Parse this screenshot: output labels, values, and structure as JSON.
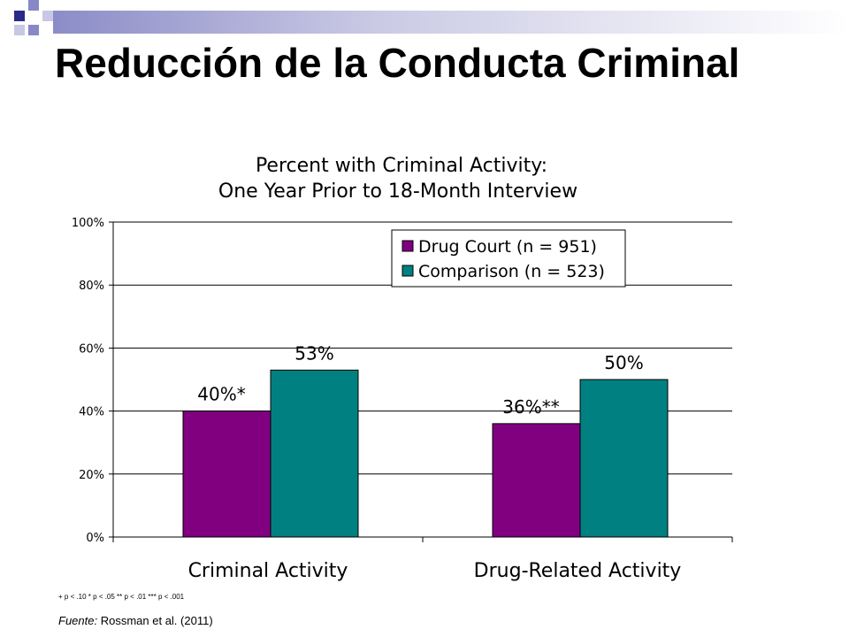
{
  "slide": {
    "title": "Reducción de la Conducta Criminal",
    "significance_note": "+ p < .10   * p < .05   ** p < .01   *** p < .001",
    "source_label": "Fuente:",
    "source_text": "Rossman et al. (2011)"
  },
  "chart_data": {
    "type": "bar",
    "title": "Percent with Criminal Activity:",
    "subtitle": "One Year Prior to 18-Month Interview",
    "categories": [
      "Criminal Activity",
      "Drug-Related Activity"
    ],
    "series": [
      {
        "name": "Drug Court (n = 951)",
        "values": [
          40,
          36
        ],
        "labels": [
          "40%*",
          "36%**"
        ],
        "color": "#800080"
      },
      {
        "name": "Comparison (n = 523)",
        "values": [
          53,
          50
        ],
        "labels": [
          "53%",
          "50%"
        ],
        "color": "#008080"
      }
    ],
    "ylim": [
      0,
      100
    ],
    "yticks": [
      "0%",
      "20%",
      "40%",
      "60%",
      "80%",
      "100%"
    ],
    "grid": true,
    "legend_position": "top-right"
  }
}
